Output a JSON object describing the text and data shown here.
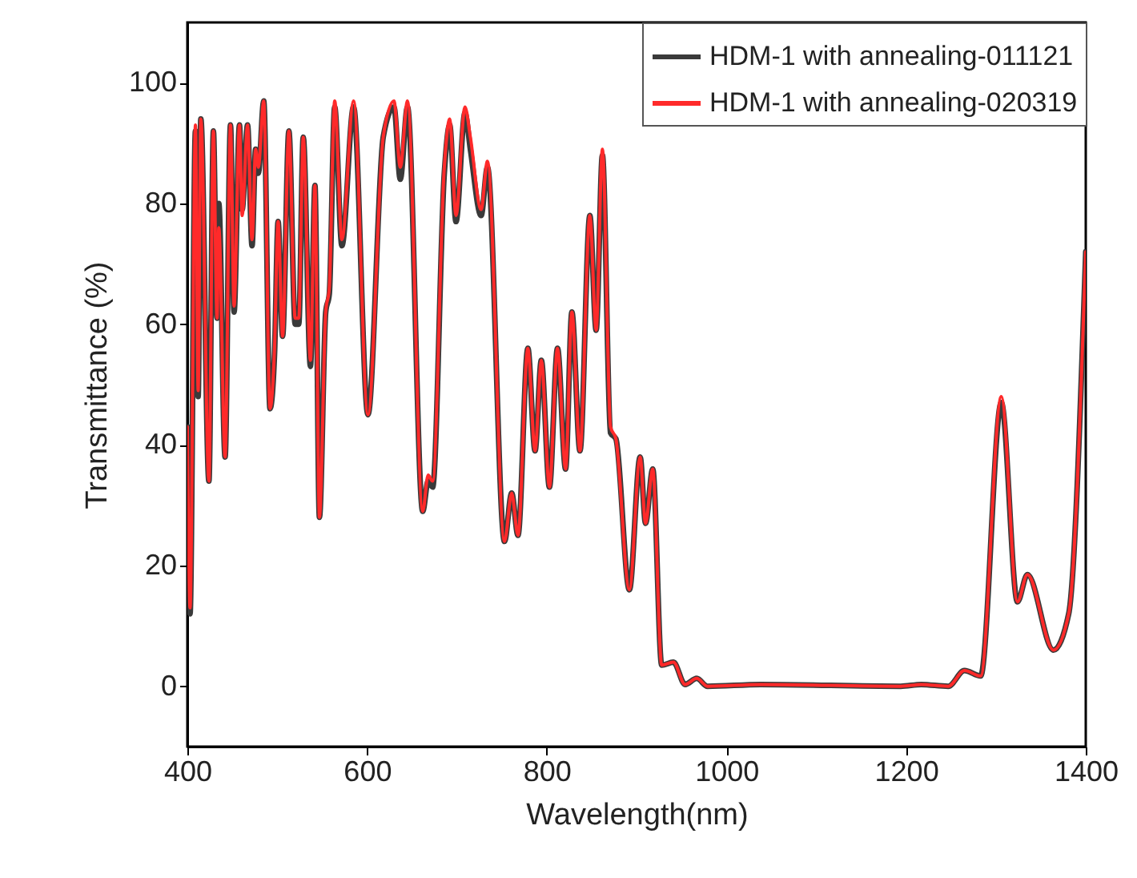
{
  "chart_data": {
    "type": "line",
    "xlabel": "Wavelength(nm)",
    "ylabel": "Transmittance (%)",
    "x": [
      400,
      403,
      409,
      412,
      415,
      424,
      429,
      433,
      435,
      442,
      448,
      452,
      458,
      461,
      467,
      472,
      476,
      479,
      485,
      492,
      497,
      501,
      506,
      513,
      520,
      524,
      529,
      537,
      542,
      547,
      554,
      558,
      564,
      572,
      585,
      601,
      618,
      630,
      637,
      645,
      662,
      668,
      673,
      686,
      692,
      699,
      709,
      715,
      727,
      734,
      753,
      761,
      768,
      779,
      787,
      794,
      803,
      812,
      821,
      828,
      837,
      848,
      855,
      862,
      871,
      877,
      892,
      904,
      910,
      918,
      928,
      941,
      954,
      967,
      979,
      1038,
      1194,
      1217,
      1247,
      1265,
      1283,
      1306,
      1324,
      1335,
      1364,
      1381,
      1400
    ],
    "series": [
      {
        "name": "HDM-1 with annealing-011121",
        "color": "#3a3a3a",
        "values": [
          43,
          12,
          92,
          48,
          94,
          34,
          92,
          61,
          80,
          38,
          93,
          62,
          93,
          79,
          93,
          73,
          89,
          85,
          97,
          46,
          55,
          77,
          58,
          92,
          60,
          60,
          91,
          53,
          83,
          28,
          62,
          65,
          96,
          73,
          96,
          45,
          91,
          96,
          84,
          96,
          29,
          34,
          33,
          85,
          93,
          77,
          95,
          89,
          78,
          86,
          24,
          32,
          25,
          56,
          39,
          54,
          33,
          56,
          36,
          62,
          39,
          78,
          59,
          88,
          42,
          41,
          16,
          38,
          27,
          36,
          3.5,
          4,
          0.3,
          1.3,
          0,
          0.3,
          0,
          0.3,
          0,
          2.6,
          1.7,
          47,
          14,
          18.5,
          6,
          12,
          72
        ]
      },
      {
        "name": "HDM-1 with annealing-020319",
        "color": "#ff2a2a",
        "values": [
          43,
          13,
          93,
          49,
          94,
          34,
          92,
          61,
          76,
          38,
          93,
          63,
          93,
          78,
          93,
          74,
          89,
          86,
          97,
          46,
          56,
          77,
          58,
          92,
          61,
          61,
          91,
          54,
          83,
          28,
          62,
          66,
          97,
          74,
          97,
          45,
          91,
          97,
          86,
          97,
          29,
          35,
          34,
          86,
          94,
          78,
          96,
          91,
          79,
          87,
          24,
          32,
          25,
          56,
          39,
          54,
          33,
          56,
          36,
          62,
          39,
          78,
          59,
          89,
          43,
          41,
          16,
          38,
          27,
          36,
          3.5,
          4,
          0.3,
          1.3,
          0,
          0.3,
          0,
          0.3,
          0,
          2.6,
          1.7,
          48,
          14,
          18.5,
          6,
          12,
          72
        ]
      }
    ],
    "xlim": [
      400,
      1400
    ],
    "xticks": [
      400,
      600,
      800,
      1000,
      1200,
      1400
    ],
    "ylim": [
      -10,
      110
    ],
    "yticks": [
      0,
      20,
      40,
      60,
      80,
      100
    ],
    "grid": false,
    "legend": "top right"
  }
}
